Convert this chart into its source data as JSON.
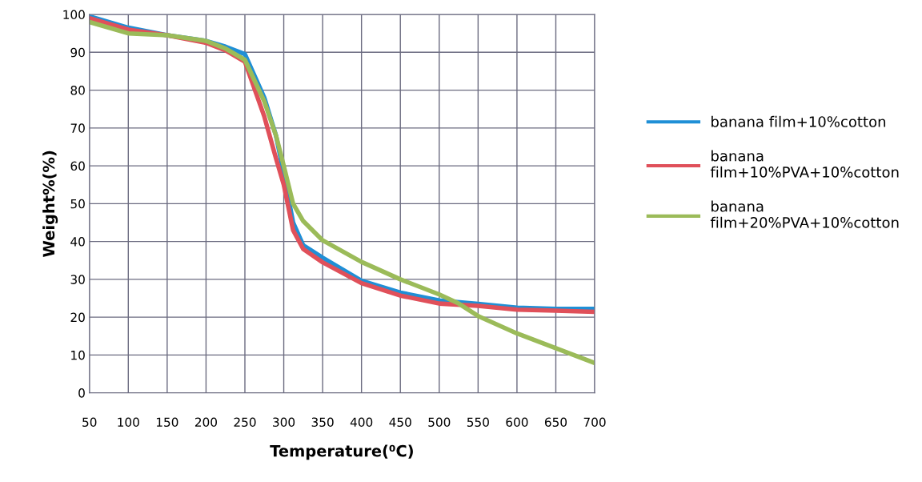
{
  "chart_data": {
    "type": "line",
    "xlabel": "Temperature(⁰C)",
    "ylabel": "Weight%(%)",
    "xlim": [
      50,
      700
    ],
    "ylim": [
      0,
      100
    ],
    "xticks": [
      50,
      100,
      150,
      200,
      250,
      300,
      350,
      400,
      450,
      500,
      550,
      600,
      650,
      700
    ],
    "yticks": [
      0,
      10,
      20,
      30,
      40,
      50,
      60,
      70,
      80,
      90,
      100
    ],
    "grid": true,
    "legend": "right",
    "series": [
      {
        "name": "banana film+10%cotton",
        "color": "#1f8fd6",
        "x": [
          50,
          100,
          150,
          200,
          225,
          250,
          275,
          290,
          300,
          312,
          325,
          350,
          400,
          450,
          500,
          550,
          600,
          650,
          700
        ],
        "values": [
          99.5,
          96.5,
          94.5,
          93,
          91.5,
          89.5,
          78,
          68,
          58,
          45,
          39,
          35.7,
          29.6,
          26.5,
          24.4,
          23.5,
          22.5,
          22.2,
          22.2
        ]
      },
      {
        "name": "banana film+10%PVA+10%cotton",
        "color": "#e0505a",
        "x": [
          50,
          100,
          150,
          200,
          225,
          250,
          275,
          290,
          300,
          312,
          325,
          350,
          400,
          450,
          500,
          550,
          600,
          650,
          700
        ],
        "values": [
          99,
          96,
          94.5,
          92.5,
          90.5,
          87.5,
          73,
          62,
          55,
          43,
          38,
          34.5,
          29,
          25.7,
          23.6,
          23,
          22,
          21.7,
          21.4
        ]
      },
      {
        "name": "banana film+20%PVA+10%cotton",
        "color": "#9bbb59",
        "x": [
          50,
          100,
          150,
          200,
          225,
          250,
          275,
          290,
          300,
          312,
          325,
          350,
          400,
          450,
          500,
          525,
          550,
          600,
          650,
          700
        ],
        "values": [
          98,
          95,
          94.5,
          93,
          91,
          88,
          77,
          68,
          60,
          50,
          45.4,
          40.3,
          34.6,
          30,
          26,
          23.6,
          20.3,
          15.7,
          11.8,
          7.9
        ]
      }
    ]
  }
}
